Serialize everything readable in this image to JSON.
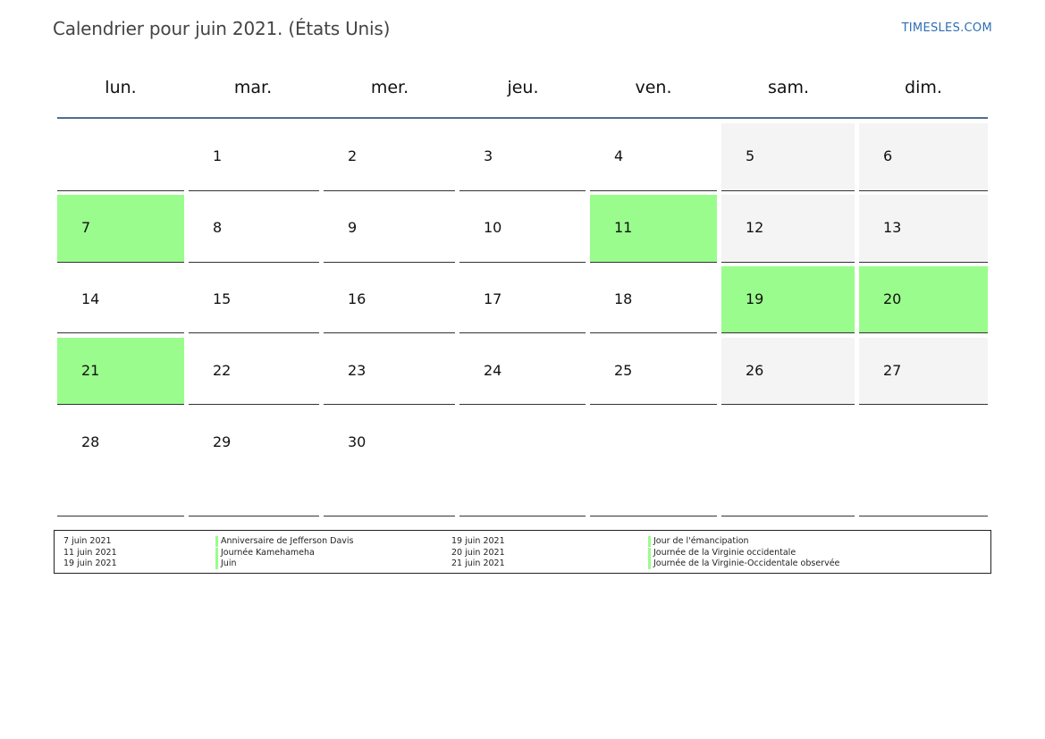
{
  "title": "Calendrier pour juin 2021. (États Unis)",
  "brand": "TIMESLES.COM",
  "colors": {
    "holiday": "#9afc8c",
    "weekend": "#f4f4f4",
    "header_rule": "#4e6d8f",
    "brand": "#2d6fb4"
  },
  "weekdays": [
    "lun.",
    "mar.",
    "mer.",
    "jeu.",
    "ven.",
    "sam.",
    "dim."
  ],
  "weeks": [
    [
      {
        "day": ""
      },
      {
        "day": "1"
      },
      {
        "day": "2"
      },
      {
        "day": "3"
      },
      {
        "day": "4"
      },
      {
        "day": "5",
        "type": "weekend"
      },
      {
        "day": "6",
        "type": "weekend"
      }
    ],
    [
      {
        "day": "7",
        "type": "holiday"
      },
      {
        "day": "8"
      },
      {
        "day": "9"
      },
      {
        "day": "10"
      },
      {
        "day": "11",
        "type": "holiday"
      },
      {
        "day": "12",
        "type": "weekend"
      },
      {
        "day": "13",
        "type": "weekend"
      }
    ],
    [
      {
        "day": "14"
      },
      {
        "day": "15"
      },
      {
        "day": "16"
      },
      {
        "day": "17"
      },
      {
        "day": "18"
      },
      {
        "day": "19",
        "type": "holiday"
      },
      {
        "day": "20",
        "type": "holiday"
      }
    ],
    [
      {
        "day": "21",
        "type": "holiday"
      },
      {
        "day": "22"
      },
      {
        "day": "23"
      },
      {
        "day": "24"
      },
      {
        "day": "25"
      },
      {
        "day": "26",
        "type": "weekend"
      },
      {
        "day": "27",
        "type": "weekend"
      }
    ],
    [
      {
        "day": "28"
      },
      {
        "day": "29"
      },
      {
        "day": "30"
      },
      {
        "day": ""
      },
      {
        "day": ""
      },
      {
        "day": ""
      },
      {
        "day": ""
      }
    ]
  ],
  "legend": {
    "left": [
      {
        "date": "7 juin 2021",
        "name": "Anniversaire de Jefferson Davis"
      },
      {
        "date": "11 juin 2021",
        "name": "Journée Kamehameha"
      },
      {
        "date": "19 juin 2021",
        "name": "Juin"
      }
    ],
    "right": [
      {
        "date": "19 juin 2021",
        "name": "Jour de l'émancipation"
      },
      {
        "date": "20 juin 2021",
        "name": "Journée de la Virginie occidentale"
      },
      {
        "date": "21 juin 2021",
        "name": "Journée de la Virginie-Occidentale observée"
      }
    ]
  }
}
